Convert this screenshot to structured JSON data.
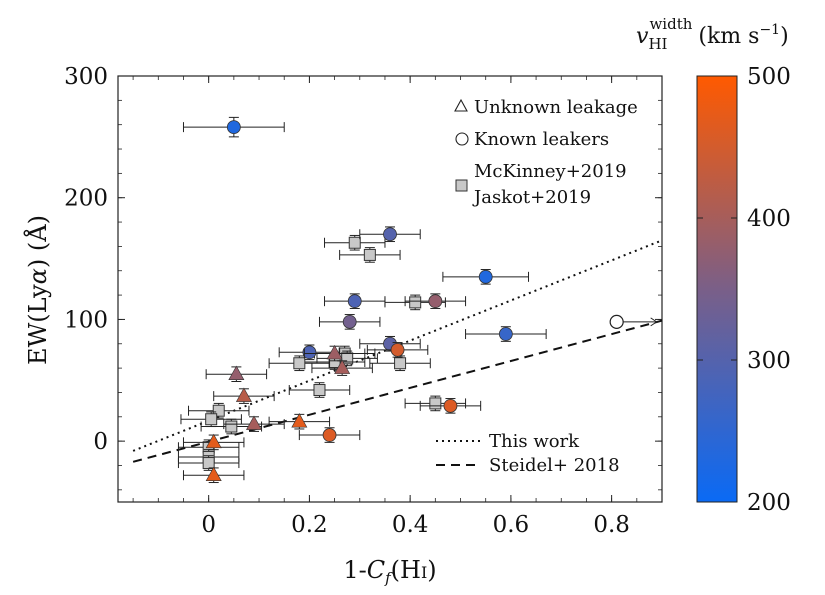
{
  "chart_data": {
    "type": "scatter",
    "xlabel": "1-C_f(H I)",
    "ylabel": "EW(Lyα) (Å)",
    "xlim": [
      -0.18,
      0.9
    ],
    "ylim": [
      -50,
      300
    ],
    "xticks": [
      "0",
      "0.2",
      "0.4",
      "0.6",
      "0.8"
    ],
    "yticks": [
      "0",
      "100",
      "200",
      "300"
    ],
    "legend": {
      "position": "top-right",
      "items": [
        "Unknown leakage",
        "Known leakers",
        "McKinney+2019",
        "Jaskot+2019"
      ]
    },
    "line_legend": {
      "position": "bottom-right",
      "items": [
        "This work",
        "Steidel+ 2018"
      ]
    },
    "colorbar": {
      "title": "v_HI^width (km s^-1)",
      "range": [
        200,
        500
      ],
      "ticks": [
        "200",
        "300",
        "400",
        "500"
      ],
      "color_low": "#0a6af5",
      "color_mid": "#7a5f88",
      "color_high": "#ff5a00"
    },
    "fit_lines": [
      {
        "name": "This work",
        "style": "dotted",
        "points": [
          [
            -0.15,
            -8
          ],
          [
            0.9,
            165
          ]
        ]
      },
      {
        "name": "Steidel+ 2018",
        "style": "dashed",
        "points": [
          [
            -0.15,
            -17
          ],
          [
            0.9,
            99
          ]
        ]
      }
    ],
    "known_leakers": [
      {
        "x": 0.05,
        "y": 258,
        "v": 230,
        "xerr": 0.1,
        "yerr": 8
      },
      {
        "x": 0.36,
        "y": 170,
        "v": 300
      },
      {
        "x": 0.55,
        "y": 135,
        "v": 230,
        "xerr": 0.085
      },
      {
        "x": 0.29,
        "y": 115,
        "v": 290
      },
      {
        "x": 0.45,
        "y": 115,
        "v": 380
      },
      {
        "x": 0.28,
        "y": 98,
        "v": 340
      },
      {
        "x": 0.59,
        "y": 88,
        "v": 260,
        "xerr": 0.08
      },
      {
        "x": 0.36,
        "y": 80,
        "v": 310
      },
      {
        "x": 0.2,
        "y": 73,
        "v": 290
      },
      {
        "x": 0.375,
        "y": 75,
        "v": 450
      },
      {
        "x": 0.24,
        "y": 5,
        "v": 460
      },
      {
        "x": 0.48,
        "y": 29,
        "v": 460
      }
    ],
    "known_leaker_open": [
      {
        "x": 0.81,
        "y": 98,
        "lower_limit": true
      }
    ],
    "unknown_leakage": [
      {
        "x": 0.055,
        "y": 55,
        "v": 380
      },
      {
        "x": 0.07,
        "y": 37,
        "v": 420
      },
      {
        "x": 0.09,
        "y": 14,
        "v": 400
      },
      {
        "x": 0.25,
        "y": 72,
        "v": 390
      },
      {
        "x": 0.265,
        "y": 60,
        "v": 400
      },
      {
        "x": 0.18,
        "y": 16,
        "v": 470
      },
      {
        "x": 0.01,
        "y": -1,
        "v": 470
      },
      {
        "x": 0.01,
        "y": -28,
        "v": 470
      }
    ],
    "comparison_squares": [
      {
        "x": 0.29,
        "y": 163
      },
      {
        "x": 0.32,
        "y": 153
      },
      {
        "x": 0.41,
        "y": 114
      },
      {
        "x": 0.27,
        "y": 72
      },
      {
        "x": 0.275,
        "y": 68
      },
      {
        "x": 0.25,
        "y": 65
      },
      {
        "x": 0.18,
        "y": 64
      },
      {
        "x": 0.38,
        "y": 64
      },
      {
        "x": 0.22,
        "y": 42
      },
      {
        "x": 0.02,
        "y": 25
      },
      {
        "x": 0.005,
        "y": 18
      },
      {
        "x": 0.045,
        "y": 12
      },
      {
        "x": 0.0,
        "y": -5
      },
      {
        "x": 0.0,
        "y": -13
      },
      {
        "x": 0.0,
        "y": -18
      },
      {
        "x": 0.45,
        "y": 31
      }
    ]
  }
}
